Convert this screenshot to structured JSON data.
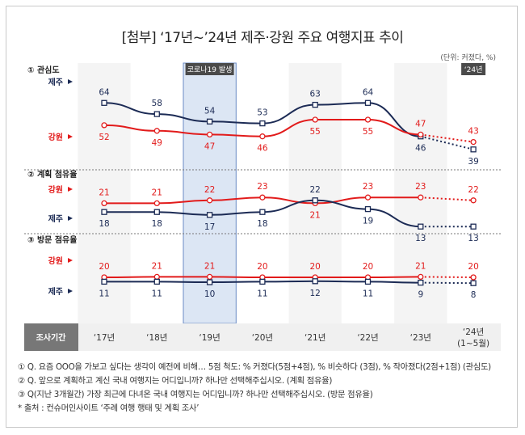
{
  "title": "[첨부] ‘17년~’24년 제주·강원 주요 여행지표 추이",
  "unit": "(단위: 커졌다, %)",
  "badges": {
    "covid": "코로나19 발생",
    "y24": "‘24년"
  },
  "header_label": "조사기간",
  "years": [
    "‘17년",
    "‘18년",
    "‘19년",
    "‘20년",
    "‘21년",
    "‘22년",
    "‘23년",
    "‘24년",
    "(1~5월)"
  ],
  "colors": {
    "jeju": "#1c2b55",
    "gangwon": "#e21b1b",
    "covid_band": "#dce6f4",
    "covid_badge": "#4a4a4a"
  },
  "chart_data": [
    {
      "type": "line",
      "title": "① 관심도",
      "categories": [
        "‘17년",
        "‘18년",
        "‘19년",
        "‘20년",
        "‘21년",
        "‘22년",
        "‘23년",
        "‘24년(1~5월)"
      ],
      "series": [
        {
          "name": "제주",
          "values": [
            64,
            58,
            54,
            53,
            63,
            64,
            46,
            39
          ]
        },
        {
          "name": "강원",
          "values": [
            52,
            49,
            47,
            46,
            55,
            55,
            47,
            43
          ]
        }
      ]
    },
    {
      "type": "line",
      "title": "② 계획 점유율",
      "categories": [
        "‘17년",
        "‘18년",
        "‘19년",
        "‘20년",
        "‘21년",
        "‘22년",
        "‘23년",
        "‘24년(1~5월)"
      ],
      "series": [
        {
          "name": "강원",
          "values": [
            21,
            21,
            22,
            23,
            21,
            23,
            23,
            22
          ]
        },
        {
          "name": "제주",
          "values": [
            18,
            18,
            17,
            18,
            22,
            19,
            13,
            13
          ]
        }
      ]
    },
    {
      "type": "line",
      "title": "③ 방문 점유율",
      "categories": [
        "‘17년",
        "‘18년",
        "‘19년",
        "‘20년",
        "‘21년",
        "‘22년",
        "‘23년",
        "‘24년(1~5월)"
      ],
      "series": [
        {
          "name": "강원",
          "values": [
            20,
            21,
            21,
            20,
            20,
            20,
            21,
            20
          ]
        },
        {
          "name": "제주",
          "values": [
            11,
            11,
            10,
            11,
            12,
            11,
            9,
            8
          ]
        }
      ]
    }
  ],
  "notes": [
    "① Q. 요즘 OOO을 가보고 싶다는 생각이 예전에 비해… 5점 척도: % 커졌다(5점+4점), % 비슷하다 (3점), % 작아졌다(2점+1점) (관심도)",
    "② Q. 앞으로 계획하고 계신 국내 여행지는 어디입니까? 하나만 선택해주십시오. (계획 점유율)",
    "③ Q(지난 3개월간) 가장 최근에 다녀온 국내 여행지는 어디입니까? 하나만 선택해주십시오. (방문 점유율)",
    "* 출처 : 컨슈머인사이트 ‘주례 여행 행태 및 계획 조사’"
  ]
}
